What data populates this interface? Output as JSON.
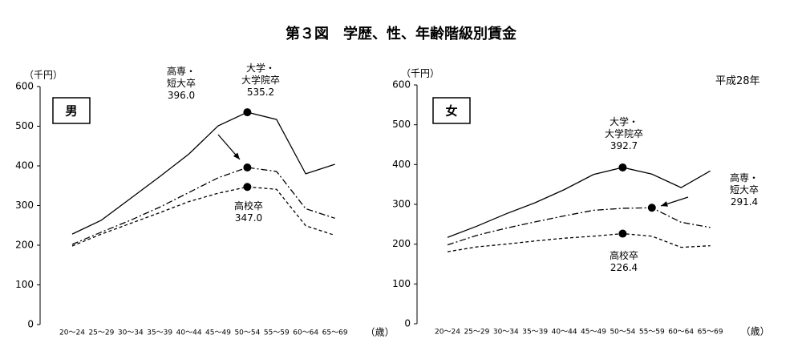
{
  "title": "第３図　学歴、性、年齢階級別賃金",
  "note": "平成28年",
  "chart_data": [
    {
      "type": "line",
      "panel": "男",
      "y_unit": "（千円）",
      "x_unit": "（歳）",
      "categories": [
        "20～24",
        "25～29",
        "30～34",
        "35～39",
        "40～44",
        "45～49",
        "50～54",
        "55～59",
        "60～64",
        "65～69"
      ],
      "ylim": [
        0,
        600
      ],
      "yticks": [
        0,
        100,
        200,
        300,
        400,
        500,
        600
      ],
      "series": [
        {
          "name": "大学・\n大学院卒",
          "style": "solid",
          "color": "#000000",
          "values": [
            228,
            263,
            318,
            373,
            430,
            501,
            535.2,
            517,
            380,
            404
          ],
          "value_labels": [
            null,
            null,
            null,
            null,
            null,
            null,
            "535.2",
            null,
            null,
            null
          ]
        },
        {
          "name": "高専・\n短大卒",
          "style": "dashdot",
          "color": "#000000",
          "values": [
            202,
            233,
            263,
            296,
            333,
            370,
            396.0,
            386,
            292,
            268
          ],
          "value_labels": [
            null,
            null,
            null,
            null,
            null,
            null,
            "396.0",
            null,
            null,
            null
          ]
        },
        {
          "name": "高校卒",
          "style": "dashed",
          "color": "#000000",
          "values": [
            198,
            228,
            255,
            282,
            310,
            331,
            347.0,
            341,
            249,
            225
          ],
          "value_labels": [
            null,
            null,
            null,
            null,
            null,
            null,
            "347.0",
            null,
            null,
            null
          ]
        }
      ]
    },
    {
      "type": "line",
      "panel": "女",
      "y_unit": "（千円）",
      "x_unit": "（歳）",
      "categories": [
        "20～24",
        "25～29",
        "30～34",
        "35～39",
        "40～44",
        "45～49",
        "50～54",
        "55～59",
        "60～64",
        "65～69"
      ],
      "ylim": [
        0,
        600
      ],
      "yticks": [
        0,
        100,
        200,
        300,
        400,
        500,
        600
      ],
      "series": [
        {
          "name": "大学・\n大学院卒",
          "style": "solid",
          "color": "#000000",
          "values": [
            217,
            245,
            276,
            304,
            337,
            375,
            392.7,
            376,
            342,
            384
          ],
          "value_labels": [
            null,
            null,
            null,
            null,
            null,
            null,
            "392.7",
            null,
            null,
            null
          ]
        },
        {
          "name": "高専・\n短大卒",
          "style": "dashdot",
          "color": "#000000",
          "values": [
            198,
            222,
            240,
            256,
            271,
            285,
            290,
            291.4,
            255,
            242
          ],
          "value_labels": [
            null,
            null,
            null,
            null,
            null,
            null,
            null,
            "291.4",
            null,
            null
          ]
        },
        {
          "name": "高校卒",
          "style": "dashed",
          "color": "#000000",
          "values": [
            181,
            193,
            200,
            208,
            215,
            220,
            226.4,
            220,
            192,
            196
          ],
          "value_labels": [
            null,
            null,
            null,
            null,
            null,
            null,
            "226.4",
            null,
            null,
            null
          ]
        }
      ]
    }
  ]
}
